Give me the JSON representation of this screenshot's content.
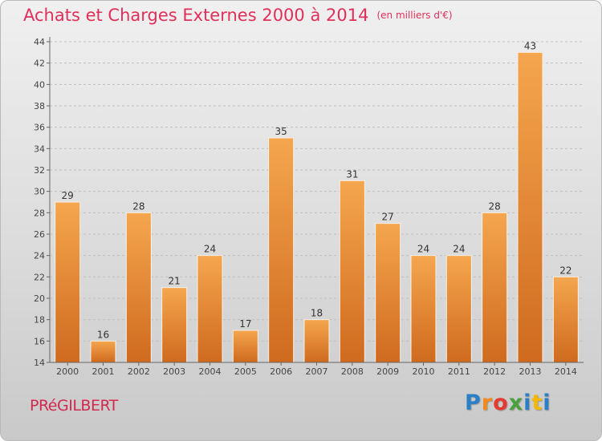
{
  "chart_data": {
    "type": "bar",
    "title": "Achats et Charges Externes 2000 à 2014",
    "subtitle": "(en milliers d'€)",
    "categories": [
      "2000",
      "2001",
      "2002",
      "2003",
      "2004",
      "2005",
      "2006",
      "2007",
      "2008",
      "2009",
      "2010",
      "2011",
      "2012",
      "2013",
      "2014"
    ],
    "values": [
      29,
      16,
      28,
      21,
      24,
      17,
      35,
      18,
      31,
      27,
      24,
      24,
      28,
      43,
      22
    ],
    "ylim": [
      14,
      44
    ],
    "yticks": [
      14,
      16,
      18,
      20,
      22,
      24,
      26,
      28,
      30,
      32,
      34,
      36,
      38,
      40,
      42,
      44
    ],
    "grid": true,
    "bar_color_top": "#f5a64e",
    "bar_color_bottom": "#cf6a1e"
  },
  "commune": "PRéGILBERT",
  "logo": {
    "letters": [
      "P",
      "r",
      "o",
      "x",
      "i",
      "t",
      "i"
    ],
    "colors": [
      "#2b7fc6",
      "#f08a1a",
      "#e63a2e",
      "#4aa23c",
      "#2b7fc6",
      "#f5b800",
      "#2b7fc6"
    ]
  }
}
